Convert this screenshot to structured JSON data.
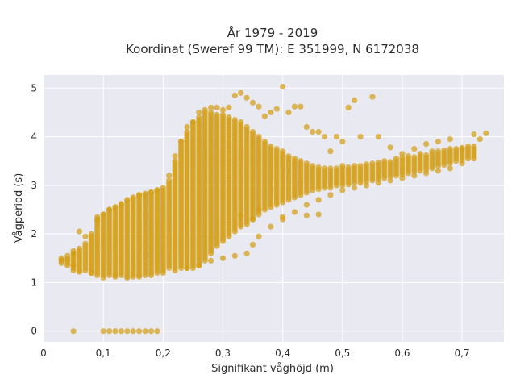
{
  "chart_data": {
    "type": "scatter",
    "title_line1": "År 1979 - 2019",
    "title_line2": "Koordinat (Sweref 99 TM): E 351999, N 6172038",
    "xlabel": "Signifikant våghöjd (m)",
    "ylabel": "Vågperiod (s)",
    "xlim": [
      0,
      0.77
    ],
    "ylim": [
      -0.22,
      5.27
    ],
    "xticks": [
      0,
      0.1,
      0.2,
      0.3,
      0.4,
      0.5,
      0.6,
      0.7
    ],
    "xtick_labels": [
      "0",
      "0,1",
      "0,2",
      "0,3",
      "0,4",
      "0,5",
      "0,6",
      "0,7"
    ],
    "yticks": [
      0,
      1,
      2,
      3,
      4,
      5
    ],
    "ytick_labels": [
      "0",
      "1",
      "2",
      "3",
      "4",
      "5"
    ],
    "grid": true,
    "legend": "none",
    "marker_color": "#d4a017",
    "plot_bg": "#e8e9f1",
    "series": [
      {
        "points": [
          [
            0.03,
            1.46
          ],
          [
            0.04,
            1.46
          ],
          [
            0.05,
            1.35
          ],
          [
            0.05,
            1.6
          ],
          [
            0.06,
            1.22
          ],
          [
            0.06,
            2.05
          ],
          [
            0.07,
            1.95
          ],
          [
            0.08,
            1.2
          ],
          [
            0.09,
            2.3
          ],
          [
            0.1,
            2.4
          ],
          [
            0.11,
            2.5
          ],
          [
            0.12,
            2.55
          ],
          [
            0.13,
            2.62
          ],
          [
            0.14,
            2.7
          ],
          [
            0.15,
            2.75
          ],
          [
            0.16,
            2.8
          ],
          [
            0.17,
            2.83
          ],
          [
            0.18,
            2.86
          ],
          [
            0.19,
            2.9
          ],
          [
            0.2,
            2.95
          ],
          [
            0.21,
            3.2
          ],
          [
            0.22,
            3.6
          ],
          [
            0.23,
            3.9
          ],
          [
            0.24,
            4.2
          ],
          [
            0.25,
            4.3
          ],
          [
            0.26,
            4.5
          ],
          [
            0.27,
            4.55
          ],
          [
            0.28,
            4.6
          ],
          [
            0.29,
            4.6
          ],
          [
            0.3,
            4.55
          ],
          [
            0.31,
            4.6
          ],
          [
            0.32,
            4.85
          ],
          [
            0.33,
            4.9
          ],
          [
            0.34,
            4.8
          ],
          [
            0.35,
            4.7
          ],
          [
            0.36,
            4.62
          ],
          [
            0.37,
            4.42
          ],
          [
            0.38,
            4.5
          ],
          [
            0.39,
            4.57
          ],
          [
            0.4,
            5.03
          ],
          [
            0.41,
            4.5
          ],
          [
            0.42,
            4.62
          ],
          [
            0.43,
            4.62
          ],
          [
            0.44,
            4.2
          ],
          [
            0.45,
            4.1
          ],
          [
            0.46,
            4.1
          ],
          [
            0.47,
            4.0
          ],
          [
            0.48,
            3.7
          ],
          [
            0.49,
            4.0
          ],
          [
            0.5,
            3.9
          ],
          [
            0.51,
            4.6
          ],
          [
            0.52,
            4.75
          ],
          [
            0.53,
            4.0
          ],
          [
            0.55,
            4.82
          ],
          [
            0.56,
            4.0
          ],
          [
            0.58,
            3.78
          ],
          [
            0.6,
            3.65
          ],
          [
            0.62,
            3.75
          ],
          [
            0.64,
            3.85
          ],
          [
            0.66,
            3.9
          ],
          [
            0.68,
            3.95
          ],
          [
            0.7,
            3.75
          ],
          [
            0.72,
            4.05
          ],
          [
            0.73,
            3.95
          ],
          [
            0.74,
            4.07
          ],
          [
            0.1,
            1.1
          ],
          [
            0.12,
            1.12
          ],
          [
            0.14,
            1.1
          ],
          [
            0.16,
            1.12
          ],
          [
            0.18,
            1.15
          ],
          [
            0.2,
            1.2
          ],
          [
            0.22,
            1.25
          ],
          [
            0.24,
            1.3
          ],
          [
            0.26,
            1.35
          ],
          [
            0.28,
            1.45
          ],
          [
            0.3,
            1.5
          ],
          [
            0.32,
            1.55
          ],
          [
            0.34,
            1.6
          ],
          [
            0.35,
            1.78
          ],
          [
            0.36,
            1.95
          ],
          [
            0.38,
            2.15
          ],
          [
            0.4,
            2.3
          ],
          [
            0.42,
            2.45
          ],
          [
            0.44,
            2.6
          ],
          [
            0.46,
            2.7
          ],
          [
            0.48,
            2.8
          ],
          [
            0.5,
            2.9
          ],
          [
            0.52,
            2.95
          ],
          [
            0.54,
            3.0
          ],
          [
            0.56,
            3.05
          ],
          [
            0.58,
            3.1
          ],
          [
            0.6,
            3.15
          ],
          [
            0.62,
            3.2
          ],
          [
            0.64,
            3.25
          ],
          [
            0.66,
            3.3
          ],
          [
            0.68,
            3.35
          ],
          [
            0.7,
            3.45
          ],
          [
            0.33,
            2.38
          ],
          [
            0.35,
            2.3
          ],
          [
            0.36,
            2.5
          ],
          [
            0.4,
            2.35
          ],
          [
            0.44,
            2.38
          ],
          [
            0.46,
            2.4
          ],
          [
            0.05,
            0
          ],
          [
            0.1,
            0
          ],
          [
            0.11,
            0
          ],
          [
            0.12,
            0
          ],
          [
            0.13,
            0
          ],
          [
            0.14,
            0
          ],
          [
            0.15,
            0
          ],
          [
            0.16,
            0
          ],
          [
            0.17,
            0
          ],
          [
            0.18,
            0
          ],
          [
            0.19,
            0
          ]
        ]
      }
    ],
    "column_bands": [
      [
        0.03,
        1.4,
        1.5
      ],
      [
        0.04,
        1.35,
        1.55
      ],
      [
        0.05,
        1.25,
        1.65
      ],
      [
        0.06,
        1.25,
        1.7
      ],
      [
        0.07,
        1.25,
        1.8
      ],
      [
        0.08,
        1.2,
        2.0
      ],
      [
        0.09,
        1.15,
        2.35
      ],
      [
        0.1,
        1.15,
        2.4
      ],
      [
        0.11,
        1.15,
        2.5
      ],
      [
        0.12,
        1.15,
        2.55
      ],
      [
        0.13,
        1.15,
        2.6
      ],
      [
        0.14,
        1.12,
        2.7
      ],
      [
        0.15,
        1.12,
        2.75
      ],
      [
        0.16,
        1.15,
        2.8
      ],
      [
        0.17,
        1.15,
        2.8
      ],
      [
        0.18,
        1.2,
        2.85
      ],
      [
        0.19,
        1.2,
        2.9
      ],
      [
        0.2,
        1.25,
        2.9
      ],
      [
        0.21,
        1.3,
        3.1
      ],
      [
        0.22,
        1.3,
        3.5
      ],
      [
        0.23,
        1.3,
        3.9
      ],
      [
        0.24,
        1.3,
        4.1
      ],
      [
        0.25,
        1.3,
        4.3
      ],
      [
        0.26,
        1.35,
        4.4
      ],
      [
        0.27,
        1.45,
        4.5
      ],
      [
        0.28,
        1.6,
        4.5
      ],
      [
        0.29,
        1.75,
        4.45
      ],
      [
        0.3,
        1.85,
        4.45
      ],
      [
        0.31,
        1.95,
        4.4
      ],
      [
        0.32,
        2.05,
        4.35
      ],
      [
        0.33,
        2.15,
        4.3
      ],
      [
        0.34,
        2.2,
        4.2
      ],
      [
        0.35,
        2.3,
        4.1
      ],
      [
        0.36,
        2.4,
        4.0
      ],
      [
        0.37,
        2.5,
        3.9
      ],
      [
        0.38,
        2.55,
        3.8
      ],
      [
        0.39,
        2.6,
        3.75
      ],
      [
        0.4,
        2.65,
        3.7
      ],
      [
        0.41,
        2.7,
        3.6
      ],
      [
        0.42,
        2.75,
        3.55
      ],
      [
        0.43,
        2.8,
        3.5
      ],
      [
        0.44,
        2.85,
        3.45
      ],
      [
        0.45,
        2.9,
        3.4
      ],
      [
        0.46,
        2.92,
        3.4
      ],
      [
        0.47,
        2.95,
        3.35
      ],
      [
        0.48,
        2.95,
        3.35
      ],
      [
        0.49,
        3.0,
        3.35
      ],
      [
        0.5,
        3.0,
        3.4
      ],
      [
        0.51,
        3.02,
        3.4
      ],
      [
        0.52,
        3.05,
        3.4
      ],
      [
        0.53,
        3.05,
        3.42
      ],
      [
        0.54,
        3.08,
        3.45
      ],
      [
        0.55,
        3.1,
        3.45
      ],
      [
        0.56,
        3.12,
        3.5
      ],
      [
        0.57,
        3.15,
        3.5
      ],
      [
        0.58,
        3.18,
        3.52
      ],
      [
        0.59,
        3.2,
        3.55
      ],
      [
        0.6,
        3.22,
        3.6
      ],
      [
        0.61,
        3.25,
        3.6
      ],
      [
        0.62,
        3.28,
        3.62
      ],
      [
        0.63,
        3.3,
        3.65
      ],
      [
        0.64,
        3.32,
        3.65
      ],
      [
        0.65,
        3.35,
        3.7
      ],
      [
        0.66,
        3.4,
        3.7
      ],
      [
        0.67,
        3.42,
        3.72
      ],
      [
        0.68,
        3.45,
        3.75
      ],
      [
        0.69,
        3.5,
        3.75
      ],
      [
        0.7,
        3.52,
        3.78
      ],
      [
        0.71,
        3.55,
        3.8
      ],
      [
        0.72,
        3.55,
        3.8
      ]
    ]
  }
}
